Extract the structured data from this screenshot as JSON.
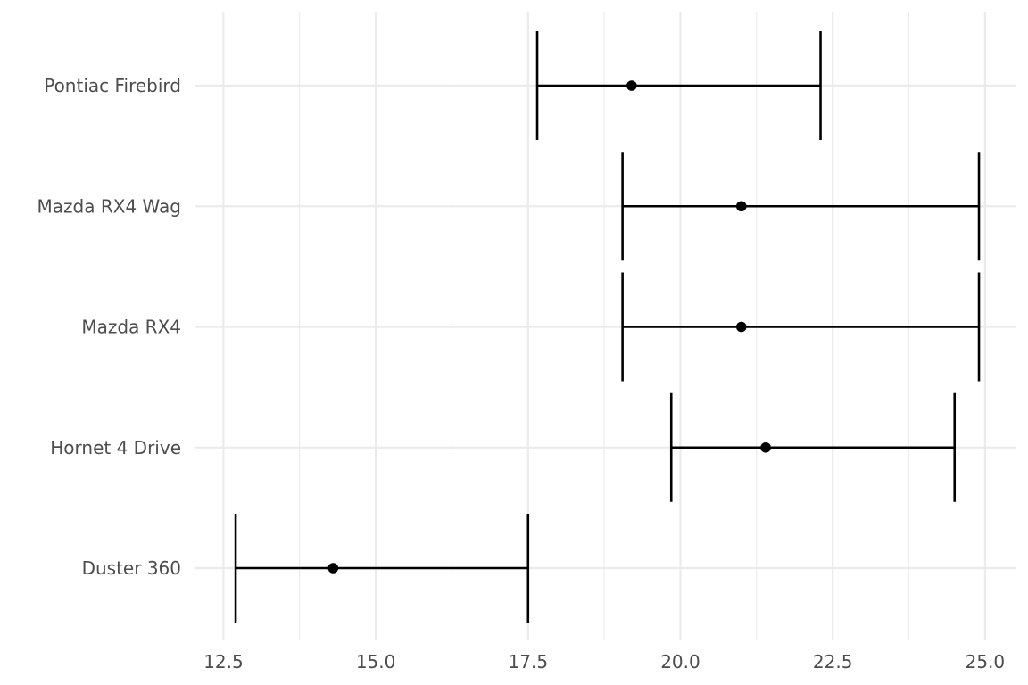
{
  "chart_data": {
    "type": "errorbar",
    "orientation": "horizontal",
    "categories": [
      "Duster 360",
      "Hornet 4 Drive",
      "Mazda RX4",
      "Mazda RX4 Wag",
      "Pontiac Firebird"
    ],
    "series": [
      {
        "points": [
          {
            "category": "Duster 360",
            "estimate": 14.3,
            "low": 12.7,
            "high": 17.5
          },
          {
            "category": "Hornet 4 Drive",
            "estimate": 21.4,
            "low": 19.85,
            "high": 24.5
          },
          {
            "category": "Mazda RX4",
            "estimate": 21.0,
            "low": 19.05,
            "high": 24.9
          },
          {
            "category": "Mazda RX4 Wag",
            "estimate": 21.0,
            "low": 19.05,
            "high": 24.9
          },
          {
            "category": "Pontiac Firebird",
            "estimate": 19.2,
            "low": 17.65,
            "high": 22.3
          }
        ]
      }
    ],
    "x_ticks": [
      12.5,
      15.0,
      17.5,
      20.0,
      22.5,
      25.0
    ],
    "x_tick_labels": [
      "12.5",
      "15.0",
      "17.5",
      "20.0",
      "22.5",
      "25.0"
    ],
    "xlim": [
      12.04,
      25.5
    ],
    "grid": true,
    "title": "",
    "xlabel": "",
    "ylabel": ""
  }
}
